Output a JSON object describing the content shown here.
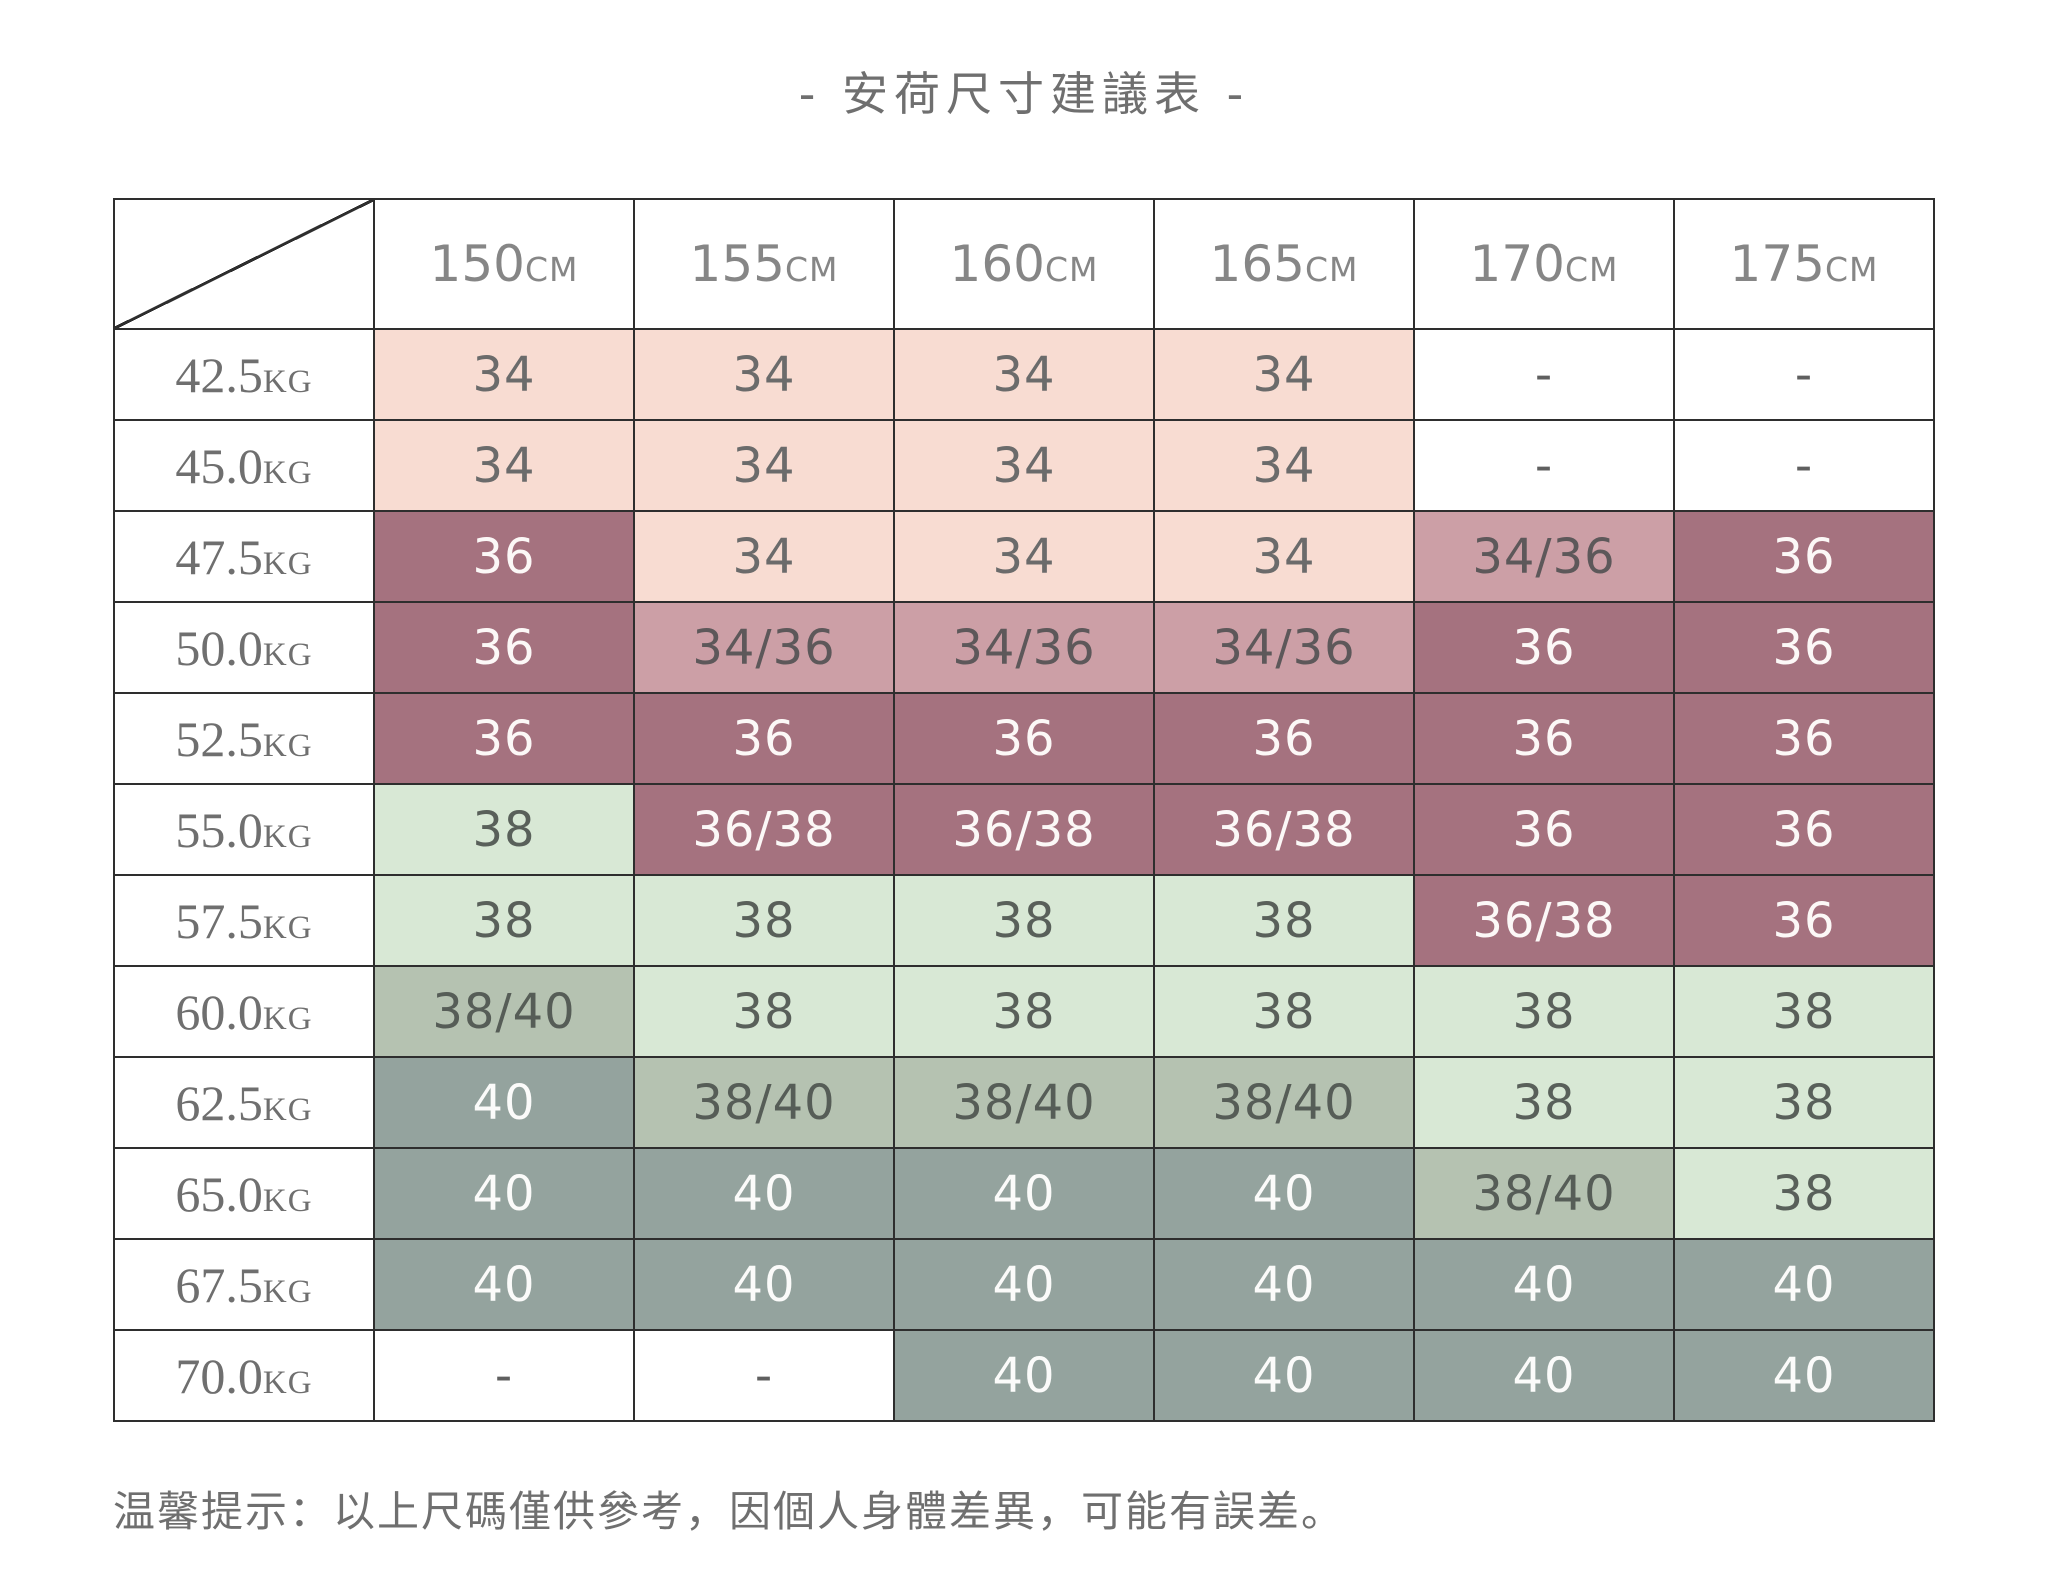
{
  "title": "- 安荷尺寸建議表 -",
  "footnote": "温馨提示：以上尺碼僅供參考，因個人身體差異，可能有誤差。",
  "colors": {
    "pink": "#f8dcd2",
    "mauve_mid": "#cc9fa6",
    "mauve_dark": "#a5727f",
    "green_light": "#d8e8d5",
    "green_mid": "#b5c2b1",
    "gray": "#94a39e",
    "white": "#ffffff",
    "border": "#2e2e2e",
    "text_dark": "#5f5f5f",
    "text_white": "#ffffff"
  },
  "chart_data": {
    "type": "table",
    "title": "安荷尺寸建議表",
    "unit_height": "CM",
    "unit_weight": "KG",
    "columns": [
      "150",
      "155",
      "160",
      "165",
      "170",
      "175"
    ],
    "rows": [
      {
        "weight": "42.5",
        "cells": [
          {
            "v": "34",
            "c": "pink"
          },
          {
            "v": "34",
            "c": "pink"
          },
          {
            "v": "34",
            "c": "pink"
          },
          {
            "v": "34",
            "c": "pink"
          },
          {
            "v": "-",
            "c": "white"
          },
          {
            "v": "-",
            "c": "white"
          }
        ]
      },
      {
        "weight": "45.0",
        "cells": [
          {
            "v": "34",
            "c": "pink"
          },
          {
            "v": "34",
            "c": "pink"
          },
          {
            "v": "34",
            "c": "pink"
          },
          {
            "v": "34",
            "c": "pink"
          },
          {
            "v": "-",
            "c": "white"
          },
          {
            "v": "-",
            "c": "white"
          }
        ]
      },
      {
        "weight": "47.5",
        "cells": [
          {
            "v": "36",
            "c": "mauve_dark"
          },
          {
            "v": "34",
            "c": "pink"
          },
          {
            "v": "34",
            "c": "pink"
          },
          {
            "v": "34",
            "c": "pink"
          },
          {
            "v": "34/36",
            "c": "mauve_mid"
          },
          {
            "v": "36",
            "c": "mauve_dark"
          }
        ]
      },
      {
        "weight": "50.0",
        "cells": [
          {
            "v": "36",
            "c": "mauve_dark"
          },
          {
            "v": "34/36",
            "c": "mauve_mid"
          },
          {
            "v": "34/36",
            "c": "mauve_mid"
          },
          {
            "v": "34/36",
            "c": "mauve_mid"
          },
          {
            "v": "36",
            "c": "mauve_dark"
          },
          {
            "v": "36",
            "c": "mauve_dark"
          }
        ]
      },
      {
        "weight": "52.5",
        "cells": [
          {
            "v": "36",
            "c": "mauve_dark"
          },
          {
            "v": "36",
            "c": "mauve_dark"
          },
          {
            "v": "36",
            "c": "mauve_dark"
          },
          {
            "v": "36",
            "c": "mauve_dark"
          },
          {
            "v": "36",
            "c": "mauve_dark"
          },
          {
            "v": "36",
            "c": "mauve_dark"
          }
        ]
      },
      {
        "weight": "55.0",
        "cells": [
          {
            "v": "38",
            "c": "green_light"
          },
          {
            "v": "36/38",
            "c": "mauve_dark"
          },
          {
            "v": "36/38",
            "c": "mauve_dark"
          },
          {
            "v": "36/38",
            "c": "mauve_dark"
          },
          {
            "v": "36",
            "c": "mauve_dark"
          },
          {
            "v": "36",
            "c": "mauve_dark"
          }
        ]
      },
      {
        "weight": "57.5",
        "cells": [
          {
            "v": "38",
            "c": "green_light"
          },
          {
            "v": "38",
            "c": "green_light"
          },
          {
            "v": "38",
            "c": "green_light"
          },
          {
            "v": "38",
            "c": "green_light"
          },
          {
            "v": "36/38",
            "c": "mauve_dark"
          },
          {
            "v": "36",
            "c": "mauve_dark"
          }
        ]
      },
      {
        "weight": "60.0",
        "cells": [
          {
            "v": "38/40",
            "c": "green_mid"
          },
          {
            "v": "38",
            "c": "green_light"
          },
          {
            "v": "38",
            "c": "green_light"
          },
          {
            "v": "38",
            "c": "green_light"
          },
          {
            "v": "38",
            "c": "green_light"
          },
          {
            "v": "38",
            "c": "green_light"
          }
        ]
      },
      {
        "weight": "62.5",
        "cells": [
          {
            "v": "40",
            "c": "gray"
          },
          {
            "v": "38/40",
            "c": "green_mid"
          },
          {
            "v": "38/40",
            "c": "green_mid"
          },
          {
            "v": "38/40",
            "c": "green_mid"
          },
          {
            "v": "38",
            "c": "green_light"
          },
          {
            "v": "38",
            "c": "green_light"
          }
        ]
      },
      {
        "weight": "65.0",
        "cells": [
          {
            "v": "40",
            "c": "gray"
          },
          {
            "v": "40",
            "c": "gray"
          },
          {
            "v": "40",
            "c": "gray"
          },
          {
            "v": "40",
            "c": "gray"
          },
          {
            "v": "38/40",
            "c": "green_mid"
          },
          {
            "v": "38",
            "c": "green_light"
          }
        ]
      },
      {
        "weight": "67.5",
        "cells": [
          {
            "v": "40",
            "c": "gray"
          },
          {
            "v": "40",
            "c": "gray"
          },
          {
            "v": "40",
            "c": "gray"
          },
          {
            "v": "40",
            "c": "gray"
          },
          {
            "v": "40",
            "c": "gray"
          },
          {
            "v": "40",
            "c": "gray"
          }
        ]
      },
      {
        "weight": "70.0",
        "cells": [
          {
            "v": "-",
            "c": "white"
          },
          {
            "v": "-",
            "c": "white"
          },
          {
            "v": "40",
            "c": "gray"
          },
          {
            "v": "40",
            "c": "gray"
          },
          {
            "v": "40",
            "c": "gray"
          },
          {
            "v": "40",
            "c": "gray"
          }
        ]
      }
    ]
  }
}
